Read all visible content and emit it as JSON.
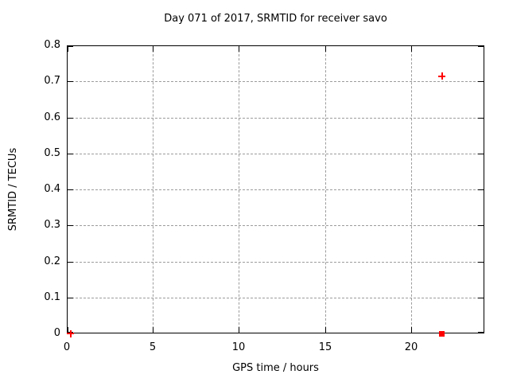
{
  "chart_data": {
    "type": "scatter",
    "title": "Day 071 of 2017, SRMTID for receiver savo",
    "xlabel": "GPS time / hours",
    "ylabel": "SRMTID / TECUs",
    "xlim": [
      0,
      24.26
    ],
    "ylim": [
      0,
      0.8
    ],
    "xticks": [
      {
        "value": 0,
        "label": "0"
      },
      {
        "value": 5,
        "label": "5"
      },
      {
        "value": 10,
        "label": "10"
      },
      {
        "value": 15,
        "label": "15"
      },
      {
        "value": 20,
        "label": "20"
      }
    ],
    "yticks": [
      {
        "value": 0.0,
        "label": "0"
      },
      {
        "value": 0.1,
        "label": "0.1"
      },
      {
        "value": 0.2,
        "label": "0.2"
      },
      {
        "value": 0.3,
        "label": "0.3"
      },
      {
        "value": 0.4,
        "label": "0.4"
      },
      {
        "value": 0.5,
        "label": "0.5"
      },
      {
        "value": 0.6,
        "label": "0.6"
      },
      {
        "value": 0.7,
        "label": "0.7"
      },
      {
        "value": 0.8,
        "label": "0.8"
      }
    ],
    "grid": true,
    "legend": "none",
    "colors": {
      "marker": "#ff0000",
      "grid": "#9c9c9c",
      "axis": "#000000",
      "background": "#ffffff"
    },
    "series": [
      {
        "name": "plus-markers",
        "marker": "plus",
        "color": "#ff0000",
        "points": [
          [
            0.23,
            0.0
          ],
          [
            21.8,
            0.714
          ]
        ]
      },
      {
        "name": "square-markers",
        "marker": "filled-square",
        "color": "#ff0000",
        "points": [
          [
            21.8,
            0.0
          ]
        ]
      }
    ]
  }
}
